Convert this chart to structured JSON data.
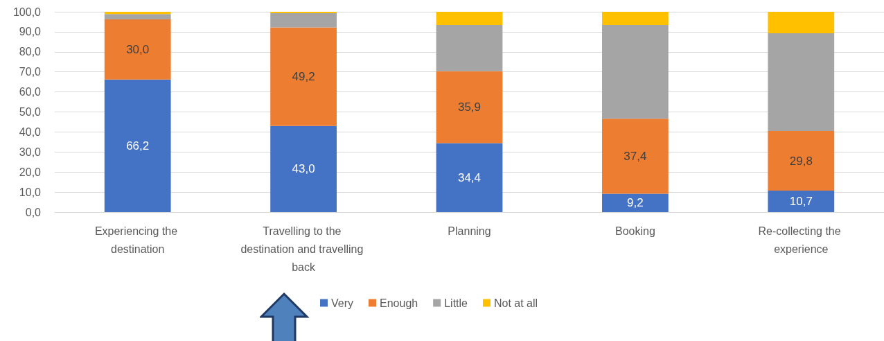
{
  "chart_data": {
    "type": "bar",
    "stacked": true,
    "categories": [
      "Experiencing the destination",
      "Travelling to the destination and travelling back",
      "Planning",
      "Booking",
      "Re-collecting the experience"
    ],
    "series": [
      {
        "name": "Very",
        "color": "#4472c4",
        "values": [
          66.2,
          43.0,
          34.4,
          9.2,
          10.7
        ],
        "value_labels": [
          "66,2",
          "43,0",
          "34,4",
          "9,2",
          "10,7"
        ]
      },
      {
        "name": "Enough",
        "color": "#ed7d31",
        "values": [
          30.0,
          49.2,
          35.9,
          37.4,
          29.8
        ],
        "value_labels": [
          "30,0",
          "49,2",
          "35,9",
          "37,4",
          "29,8"
        ]
      },
      {
        "name": "Little",
        "color": "#a5a5a5",
        "values": [
          2.7,
          7.1,
          23.1,
          46.8,
          48.8
        ]
      },
      {
        "name": "Not at all",
        "color": "#ffc000",
        "values": [
          1.1,
          0.7,
          6.6,
          6.6,
          10.7
        ]
      }
    ],
    "ylim": [
      0,
      100
    ],
    "yticks": [
      {
        "value": 0,
        "label": "0,0"
      },
      {
        "value": 10,
        "label": "10,0"
      },
      {
        "value": 20,
        "label": "20,0"
      },
      {
        "value": 30,
        "label": "30,0"
      },
      {
        "value": 40,
        "label": "40,0"
      },
      {
        "value": 50,
        "label": "50,0"
      },
      {
        "value": 60,
        "label": "60,0"
      },
      {
        "value": 70,
        "label": "70,0"
      },
      {
        "value": 80,
        "label": "80,0"
      },
      {
        "value": 90,
        "label": "90,0"
      },
      {
        "value": 100,
        "label": "100,0"
      }
    ],
    "grid": "y",
    "legend": "bottom"
  }
}
